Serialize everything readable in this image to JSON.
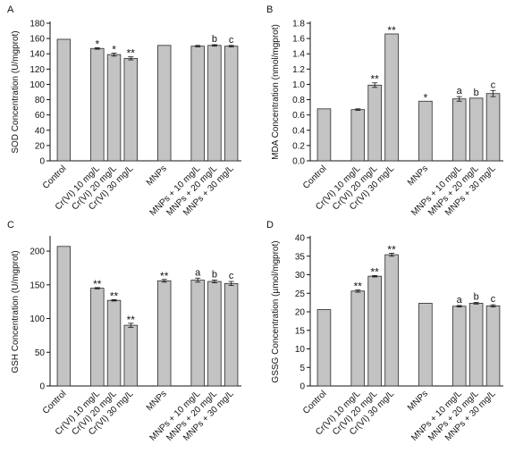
{
  "chart_data": [
    {
      "type": "bar",
      "panel_label": "A",
      "ylabel": "SOD Concentration (U/mgprot)",
      "ylim": [
        0,
        180
      ],
      "yticks": [
        0,
        20,
        40,
        60,
        80,
        100,
        120,
        140,
        160,
        180
      ],
      "categories": [
        "Control",
        "Cr(VI) 10 mg/L",
        "Cr(VI) 20 mg/L",
        "Cr(VI) 30 mg/L",
        "MNPs",
        "MNPs + 10 mg/L",
        "MNPs + 20 mg/L",
        "MNPs + 30 mg/L"
      ],
      "slots": [
        0,
        2,
        3,
        4,
        6,
        8,
        9,
        10
      ],
      "values": [
        159,
        147,
        139,
        134,
        151,
        150,
        151,
        150
      ],
      "errors": [
        0,
        1,
        2,
        2,
        0,
        1,
        1,
        1
      ],
      "annotations": [
        "",
        "*",
        "*",
        "**",
        "",
        "",
        "b",
        "c"
      ]
    },
    {
      "type": "bar",
      "panel_label": "B",
      "ylabel": "MDA Concentration (nmol/mgprot)",
      "ylim": [
        0,
        1.8
      ],
      "yticks": [
        "0.0",
        "0.2",
        "0.4",
        "0.6",
        "0.8",
        "1.0",
        "1.2",
        "1.4",
        "1.6",
        "1.8"
      ],
      "categories": [
        "Control",
        "Cr(VI) 10 mg/L",
        "Cr(VI) 20 mg/L",
        "Cr(VI) 30 mg/L",
        "MNPs",
        "MNPs + 10 mg/L",
        "MNPs + 20 mg/L",
        "MNPs + 30 mg/L"
      ],
      "slots": [
        0,
        2,
        3,
        4,
        6,
        8,
        9,
        10
      ],
      "values": [
        0.68,
        0.67,
        0.99,
        1.66,
        0.78,
        0.81,
        0.82,
        0.88
      ],
      "errors": [
        0,
        0.01,
        0.03,
        0,
        0,
        0.03,
        0,
        0.04
      ],
      "annotations": [
        "",
        "",
        "**",
        "**",
        "*",
        "a",
        "b",
        "c"
      ]
    },
    {
      "type": "bar",
      "panel_label": "C",
      "ylabel": "GSH Concentration (U/mgprot)",
      "ylim": [
        0,
        220
      ],
      "yticks": [
        0,
        50,
        100,
        150,
        200
      ],
      "categories": [
        "Control",
        "Cr(VI) 10 mg/L",
        "Cr(VI) 20 mg/L",
        "Cr(VI) 30 mg/L",
        "MNPs",
        "MNPs + 10 mg/L",
        "MNPs + 20 mg/L",
        "MNPs + 30 mg/L"
      ],
      "slots": [
        0,
        2,
        3,
        4,
        6,
        8,
        9,
        10
      ],
      "values": [
        207,
        145,
        127,
        90,
        156,
        157,
        155,
        152
      ],
      "errors": [
        0,
        1,
        1,
        3,
        2,
        3,
        2,
        3
      ],
      "annotations": [
        "",
        "**",
        "**",
        "**",
        "**",
        "a",
        "b",
        "c"
      ]
    },
    {
      "type": "bar",
      "panel_label": "D",
      "ylabel": "GSSG Concentration (µmol/mgprot)",
      "ylim": [
        0,
        40
      ],
      "yticks": [
        0,
        5,
        10,
        15,
        20,
        25,
        30,
        35,
        40
      ],
      "categories": [
        "Control",
        "Cr(VI) 10 mg/L",
        "Cr(VI) 20 mg/L",
        "Cr(VI) 30 mg/L",
        "MNPs",
        "MNPs + 10 mg/L",
        "MNPs + 20 mg/L",
        "MNPs + 30 mg/L"
      ],
      "slots": [
        0,
        2,
        3,
        4,
        6,
        8,
        9,
        10
      ],
      "values": [
        20.6,
        25.6,
        29.6,
        35.4,
        22.3,
        21.5,
        22.3,
        21.6
      ],
      "errors": [
        0,
        0.3,
        0.2,
        0.4,
        0,
        0.2,
        0.2,
        0.3
      ],
      "annotations": [
        "",
        "**",
        "**",
        "**",
        "",
        "a",
        "b",
        "c"
      ]
    }
  ]
}
